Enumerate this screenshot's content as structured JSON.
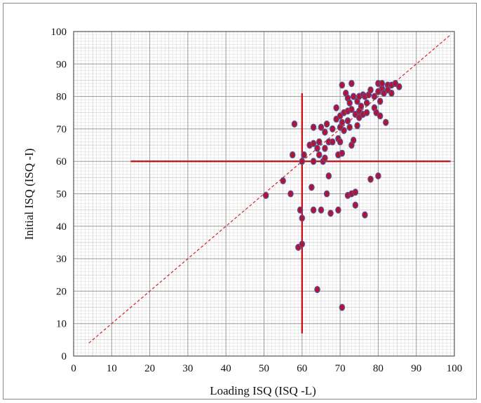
{
  "chart_data": {
    "type": "scatter",
    "xlabel": "Loading ISQ (ISQ -L)",
    "ylabel": "Initial ISQ (ISQ -I)",
    "xlim": [
      0,
      100
    ],
    "ylim": [
      0,
      100
    ],
    "x_ticks": [
      "0",
      "10",
      "20",
      "30",
      "40",
      "50",
      "60",
      "70",
      "80",
      "90",
      "100"
    ],
    "y_ticks": [
      "0",
      "10",
      "20",
      "30",
      "40",
      "50",
      "60",
      "70",
      "80",
      "90",
      "100"
    ],
    "grid": true,
    "reference_line": {
      "style": "dashed",
      "color": "#d62020",
      "from": [
        4,
        4
      ],
      "to": [
        99,
        99
      ]
    },
    "threshold_lines": {
      "color": "#c8161d",
      "horizontal": {
        "y": 60,
        "x_from": 15,
        "x_to": 99
      },
      "vertical": {
        "x": 60,
        "y_from": 7,
        "y_to": 81
      }
    },
    "marker": {
      "fill": "#b5122b",
      "stroke": "#5a4f9a"
    },
    "points": [
      {
        "x": 50.5,
        "y": 49.5
      },
      {
        "x": 55,
        "y": 54
      },
      {
        "x": 57,
        "y": 50
      },
      {
        "x": 57.5,
        "y": 62
      },
      {
        "x": 58,
        "y": 71.5
      },
      {
        "x": 59,
        "y": 33.5
      },
      {
        "x": 59.5,
        "y": 45
      },
      {
        "x": 60,
        "y": 42.5
      },
      {
        "x": 60,
        "y": 34.5
      },
      {
        "x": 60.5,
        "y": 62
      },
      {
        "x": 60,
        "y": 60
      },
      {
        "x": 62,
        "y": 65
      },
      {
        "x": 62.5,
        "y": 52
      },
      {
        "x": 63,
        "y": 70.5
      },
      {
        "x": 63,
        "y": 65.5
      },
      {
        "x": 63,
        "y": 60
      },
      {
        "x": 63,
        "y": 45
      },
      {
        "x": 64,
        "y": 20.5
      },
      {
        "x": 64,
        "y": 64
      },
      {
        "x": 64.5,
        "y": 62
      },
      {
        "x": 64.5,
        "y": 66
      },
      {
        "x": 65,
        "y": 70.5
      },
      {
        "x": 65,
        "y": 45
      },
      {
        "x": 65.5,
        "y": 60
      },
      {
        "x": 66,
        "y": 64
      },
      {
        "x": 66,
        "y": 69
      },
      {
        "x": 66,
        "y": 61
      },
      {
        "x": 66.5,
        "y": 71.5
      },
      {
        "x": 66.5,
        "y": 50
      },
      {
        "x": 67,
        "y": 66
      },
      {
        "x": 67,
        "y": 55.5
      },
      {
        "x": 67.5,
        "y": 44
      },
      {
        "x": 68,
        "y": 66
      },
      {
        "x": 68,
        "y": 70
      },
      {
        "x": 69,
        "y": 76.5
      },
      {
        "x": 69,
        "y": 73
      },
      {
        "x": 69.5,
        "y": 67
      },
      {
        "x": 69.5,
        "y": 62
      },
      {
        "x": 69.5,
        "y": 45
      },
      {
        "x": 70,
        "y": 74
      },
      {
        "x": 70,
        "y": 70.5
      },
      {
        "x": 70,
        "y": 66
      },
      {
        "x": 70.5,
        "y": 83.5
      },
      {
        "x": 70.5,
        "y": 72
      },
      {
        "x": 70.5,
        "y": 62.5
      },
      {
        "x": 70.5,
        "y": 15
      },
      {
        "x": 71,
        "y": 75
      },
      {
        "x": 71,
        "y": 69.5
      },
      {
        "x": 71.5,
        "y": 81
      },
      {
        "x": 72,
        "y": 79.5
      },
      {
        "x": 72,
        "y": 72.5
      },
      {
        "x": 72,
        "y": 75.5
      },
      {
        "x": 72,
        "y": 49.5
      },
      {
        "x": 72.5,
        "y": 78
      },
      {
        "x": 72.5,
        "y": 70.5
      },
      {
        "x": 73,
        "y": 84
      },
      {
        "x": 73,
        "y": 76
      },
      {
        "x": 73,
        "y": 65
      },
      {
        "x": 73,
        "y": 50
      },
      {
        "x": 73.5,
        "y": 80
      },
      {
        "x": 73.5,
        "y": 66.5
      },
      {
        "x": 74,
        "y": 74.5
      },
      {
        "x": 74,
        "y": 50.5
      },
      {
        "x": 74,
        "y": 46.5
      },
      {
        "x": 74.5,
        "y": 78.5
      },
      {
        "x": 74.5,
        "y": 71
      },
      {
        "x": 75,
        "y": 80
      },
      {
        "x": 75,
        "y": 75.5
      },
      {
        "x": 75,
        "y": 73.5
      },
      {
        "x": 75.5,
        "y": 77
      },
      {
        "x": 76,
        "y": 80.5
      },
      {
        "x": 76,
        "y": 74.5
      },
      {
        "x": 76.5,
        "y": 80
      },
      {
        "x": 76.5,
        "y": 43.5
      },
      {
        "x": 77,
        "y": 78
      },
      {
        "x": 77,
        "y": 75
      },
      {
        "x": 77.5,
        "y": 80.5
      },
      {
        "x": 78,
        "y": 82
      },
      {
        "x": 78,
        "y": 54.5
      },
      {
        "x": 79,
        "y": 76.5
      },
      {
        "x": 79,
        "y": 80
      },
      {
        "x": 79.5,
        "y": 75
      },
      {
        "x": 80,
        "y": 84
      },
      {
        "x": 80,
        "y": 81.5
      },
      {
        "x": 80,
        "y": 55.5
      },
      {
        "x": 80.5,
        "y": 78.5
      },
      {
        "x": 80.5,
        "y": 74
      },
      {
        "x": 81,
        "y": 82.5
      },
      {
        "x": 81,
        "y": 84
      },
      {
        "x": 81.5,
        "y": 81
      },
      {
        "x": 82,
        "y": 72
      },
      {
        "x": 82.5,
        "y": 83.5
      },
      {
        "x": 82.5,
        "y": 82
      },
      {
        "x": 83.5,
        "y": 83.5
      },
      {
        "x": 83.5,
        "y": 81
      },
      {
        "x": 84.5,
        "y": 84
      },
      {
        "x": 85.5,
        "y": 83
      }
    ]
  }
}
